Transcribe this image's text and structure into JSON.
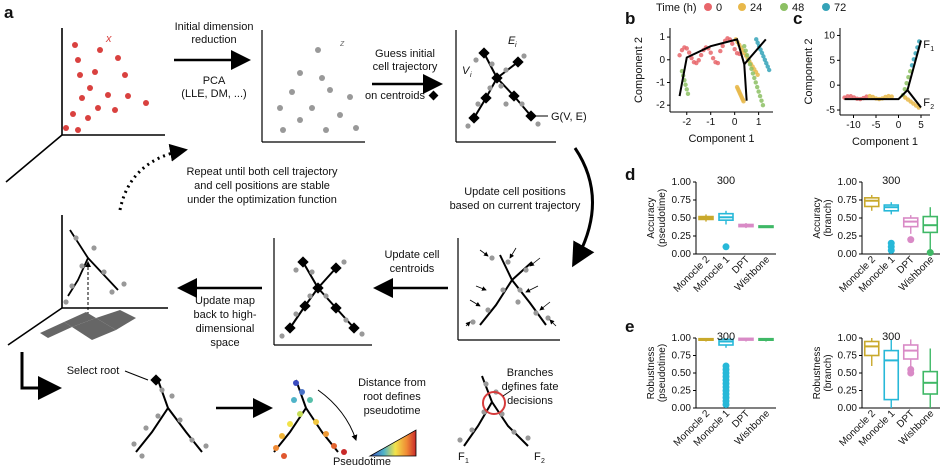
{
  "panels": {
    "a": "a",
    "b": "b",
    "c": "c",
    "d": "d",
    "e": "e"
  },
  "flow": {
    "step1": [
      "Initial dimension",
      "reduction"
    ],
    "step1_sub": [
      "PCA",
      "(LLE, DM, ...)"
    ],
    "step2": [
      "Guess initial",
      "cell trajectory",
      "on centroids"
    ],
    "graph_label": "G(V, E)",
    "vertex_label": "V",
    "vertex_sub": "i",
    "edge_label": "E",
    "edge_sub": "i",
    "x_mark": "x",
    "z_mark": "z",
    "repeat": [
      "Repeat until both cell trajectory",
      "and cell positions are stable",
      "under the optimization function"
    ],
    "update_pos": [
      "Update cell positions",
      "based on current trajectory"
    ],
    "update_centroids": [
      "Update cell",
      "centroids"
    ],
    "update_map": [
      "Update map",
      "back to high-",
      "dimensional",
      "space"
    ],
    "select_root": "Select root",
    "distance": [
      "Distance from",
      "root defines",
      "pseudotime"
    ],
    "pseudotime": "Pseudotime",
    "branches": [
      "Branches",
      "defines fate",
      "decisions"
    ],
    "f1": "F",
    "f1_sub": "1",
    "f2": "F",
    "f2_sub": "2"
  },
  "legend": {
    "title": "Time (h)",
    "items": [
      {
        "label": "0",
        "color": "#e8666b"
      },
      {
        "label": "24",
        "color": "#e8b84a"
      },
      {
        "label": "48",
        "color": "#8cc063"
      },
      {
        "label": "72",
        "color": "#35a3b8"
      }
    ]
  },
  "tool_colors": {
    "Monocle 2": "#c9a92b",
    "Monocle 1": "#27b8d8",
    "DPT": "#d98ac6",
    "Wishbone": "#3fb866"
  },
  "chart_data": [
    {
      "type": "scatter",
      "id": "b",
      "xlabel": "Component 1",
      "ylabel": "Component 2",
      "xticks": [
        "-2",
        "-1",
        "0",
        "1"
      ],
      "yticks": [
        "-2",
        "-1",
        "0",
        "1"
      ],
      "xlim": [
        -2.7,
        1.6
      ],
      "ylim": [
        -2.3,
        1.4
      ]
    },
    {
      "type": "scatter",
      "id": "c",
      "xlabel": "Component 1",
      "ylabel": "Component 2",
      "xticks": [
        "-10",
        "-5",
        "0",
        "5"
      ],
      "yticks": [
        "-5",
        "0",
        "5",
        "10"
      ],
      "xlim": [
        -13,
        7
      ],
      "ylim": [
        -6,
        11.5
      ],
      "annotations": [
        {
          "text": "F",
          "sub": "1"
        },
        {
          "text": "F",
          "sub": "2"
        }
      ]
    },
    {
      "type": "box",
      "id": "d-left",
      "ylabel": [
        "Accuracy",
        "(pseudotime)"
      ],
      "categories": [
        "Monocle 2",
        "Monocle 1",
        "DPT",
        "Wishbone"
      ],
      "yticks": [
        "0.00",
        "0.25",
        "0.50",
        "0.75",
        "1.00"
      ],
      "ylim": [
        0,
        1
      ],
      "annotation": "300",
      "boxes": [
        {
          "q1": 0.48,
          "med": 0.5,
          "q3": 0.52,
          "lo": 0.45,
          "hi": 0.55,
          "out": []
        },
        {
          "q1": 0.47,
          "med": 0.51,
          "q3": 0.56,
          "lo": 0.41,
          "hi": 0.6,
          "out": [
            0.1
          ]
        },
        {
          "q1": 0.38,
          "med": 0.39,
          "q3": 0.41,
          "lo": 0.36,
          "hi": 0.43,
          "out": []
        },
        {
          "q1": 0.37,
          "med": 0.38,
          "q3": 0.39,
          "lo": 0.37,
          "hi": 0.39,
          "out": []
        }
      ]
    },
    {
      "type": "box",
      "id": "d-right",
      "ylabel": [
        "Accuracy",
        "(branch)"
      ],
      "categories": [
        "Monocle 2",
        "Monocle 1",
        "DPT",
        "Wishbone"
      ],
      "yticks": [
        "0.00",
        "0.25",
        "0.50",
        "0.75",
        "1.00"
      ],
      "ylim": [
        0,
        1
      ],
      "annotation": "300",
      "boxes": [
        {
          "q1": 0.66,
          "med": 0.74,
          "q3": 0.78,
          "lo": 0.6,
          "hi": 0.82,
          "out": []
        },
        {
          "q1": 0.6,
          "med": 0.65,
          "q3": 0.68,
          "lo": 0.55,
          "hi": 0.72,
          "out": [
            0.05,
            0.1,
            0.15
          ]
        },
        {
          "q1": 0.38,
          "med": 0.45,
          "q3": 0.5,
          "lo": 0.28,
          "hi": 0.54,
          "out": [
            0.2
          ]
        },
        {
          "q1": 0.3,
          "med": 0.4,
          "q3": 0.52,
          "lo": 0.05,
          "hi": 0.65,
          "out": [
            0.02
          ]
        }
      ]
    },
    {
      "type": "box",
      "id": "e-left",
      "ylabel": [
        "Robustness",
        "(pseudotime)"
      ],
      "categories": [
        "Monocle 2",
        "Monocle 1",
        "DPT",
        "Wishbone"
      ],
      "yticks": [
        "0.00",
        "0.25",
        "0.50",
        "0.75",
        "1.00"
      ],
      "ylim": [
        0,
        1
      ],
      "annotation": "300",
      "boxes": [
        {
          "q1": 0.97,
          "med": 0.98,
          "q3": 0.99,
          "lo": 0.95,
          "hi": 1.0,
          "out": []
        },
        {
          "q1": 0.9,
          "med": 0.95,
          "q3": 0.98,
          "lo": 0.86,
          "hi": 1.0,
          "out": [
            0.05,
            0.1,
            0.15,
            0.2,
            0.25,
            0.3,
            0.35,
            0.4,
            0.45,
            0.5,
            0.55,
            0.6
          ]
        },
        {
          "q1": 0.97,
          "med": 0.985,
          "q3": 0.995,
          "lo": 0.95,
          "hi": 1.0,
          "out": []
        },
        {
          "q1": 0.97,
          "med": 0.98,
          "q3": 0.99,
          "lo": 0.95,
          "hi": 1.0,
          "out": []
        }
      ]
    },
    {
      "type": "box",
      "id": "e-right",
      "ylabel": [
        "Robustness",
        "(branch)"
      ],
      "categories": [
        "Monocle 2",
        "Monocle 1",
        "DPT",
        "Wishbone"
      ],
      "yticks": [
        "0.00",
        "0.25",
        "0.50",
        "0.75",
        "1.00"
      ],
      "ylim": [
        0,
        1
      ],
      "annotation": "300",
      "boxes": [
        {
          "q1": 0.75,
          "med": 0.88,
          "q3": 0.95,
          "lo": 0.6,
          "hi": 1.0,
          "out": []
        },
        {
          "q1": 0.12,
          "med": 0.68,
          "q3": 0.82,
          "lo": 0.0,
          "hi": 0.98,
          "out": []
        },
        {
          "q1": 0.7,
          "med": 0.82,
          "q3": 0.9,
          "lo": 0.55,
          "hi": 0.98,
          "out": [
            0.5,
            0.55
          ]
        },
        {
          "q1": 0.2,
          "med": 0.36,
          "q3": 0.52,
          "lo": 0.0,
          "hi": 0.85,
          "out": []
        }
      ]
    }
  ]
}
